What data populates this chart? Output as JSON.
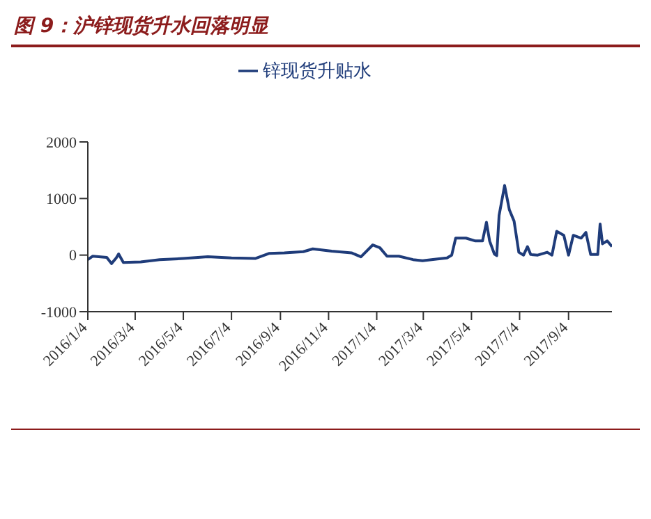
{
  "chart_data": {
    "type": "line",
    "title": "图 9：沪锌现货升水回落明显",
    "x": [
      "2016-01-04",
      "2016-01-10",
      "2016-01-28",
      "2016-02-03",
      "2016-02-09",
      "2016-02-12",
      "2016-02-18",
      "2016-03-11",
      "2016-04-04",
      "2016-05-04",
      "2016-06-04",
      "2016-07-04",
      "2016-08-03",
      "2016-08-21",
      "2016-09-09",
      "2016-10-03",
      "2016-10-15",
      "2016-11-08",
      "2016-12-03",
      "2016-12-15",
      "2016-12-30",
      "2017-01-08",
      "2017-01-17",
      "2017-02-01",
      "2017-02-19",
      "2017-03-03",
      "2017-03-22",
      "2017-04-03",
      "2017-04-09",
      "2017-04-14",
      "2017-04-27",
      "2017-05-09",
      "2017-05-18",
      "2017-05-23",
      "2017-05-27",
      "2017-06-02",
      "2017-06-05",
      "2017-06-08",
      "2017-06-15",
      "2017-06-21",
      "2017-06-27",
      "2017-07-03",
      "2017-07-09",
      "2017-07-14",
      "2017-07-18",
      "2017-07-27",
      "2017-08-08",
      "2017-08-14",
      "2017-08-20",
      "2017-08-29",
      "2017-09-04",
      "2017-09-10",
      "2017-09-20",
      "2017-09-26",
      "2017-10-02",
      "2017-10-11",
      "2017-10-14",
      "2017-10-17",
      "2017-10-23",
      "2017-10-29"
    ],
    "series": [
      {
        "name": "锌现货升贴水",
        "color": "#1f3c7a",
        "values": [
          -80,
          -20,
          -40,
          -150,
          -50,
          20,
          -130,
          -120,
          -80,
          -60,
          -30,
          -50,
          -60,
          30,
          40,
          60,
          110,
          70,
          40,
          -30,
          180,
          130,
          -20,
          -20,
          -80,
          -100,
          -70,
          -50,
          0,
          300,
          300,
          250,
          250,
          580,
          250,
          20,
          -10,
          700,
          1230,
          800,
          600,
          50,
          0,
          150,
          10,
          0,
          50,
          0,
          420,
          350,
          0,
          350,
          300,
          400,
          10,
          10,
          550,
          200,
          250,
          150
        ]
      }
    ],
    "xlim": [
      "2016-01-04",
      "2017-10-29"
    ],
    "xticks": [
      {
        "value": "2016-01-04",
        "label": "2016/1/4"
      },
      {
        "value": "2016-03-04",
        "label": "2016/3/4"
      },
      {
        "value": "2016-05-04",
        "label": "2016/5/4"
      },
      {
        "value": "2016-07-04",
        "label": "2016/7/4"
      },
      {
        "value": "2016-09-04",
        "label": "2016/9/4"
      },
      {
        "value": "2016-11-04",
        "label": "2016/11/4"
      },
      {
        "value": "2017-01-04",
        "label": "2017/1/4"
      },
      {
        "value": "2017-03-04",
        "label": "2017/3/4"
      },
      {
        "value": "2017-05-04",
        "label": "2017/5/4"
      },
      {
        "value": "2017-07-04",
        "label": "2017/7/4"
      },
      {
        "value": "2017-09-04",
        "label": "2017/9/4"
      }
    ],
    "ylim": [
      -1000,
      2000
    ],
    "yticks": [
      -1000,
      0,
      1000,
      2000
    ],
    "grid": false,
    "legend": "top",
    "marker": "none",
    "line_style": "solid"
  }
}
